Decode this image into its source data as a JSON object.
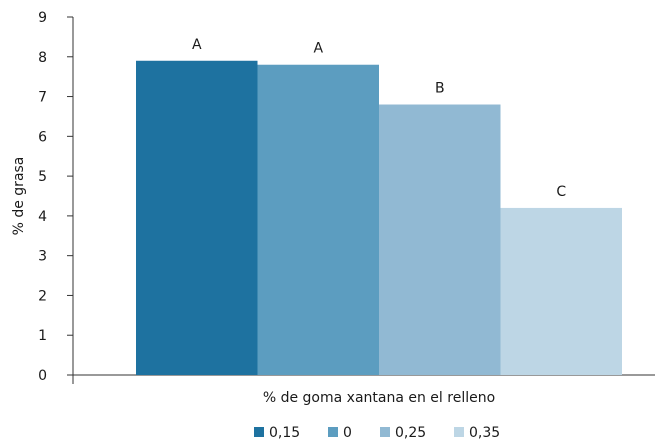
{
  "chart_data": {
    "type": "bar",
    "title": "",
    "xlabel": "% de goma xantana en el relleno",
    "ylabel": "% de grasa",
    "ylim": [
      0,
      9
    ],
    "yticks": [
      "0",
      "1",
      "2",
      "3",
      "4",
      "5",
      "6",
      "7",
      "8",
      "9"
    ],
    "grid": false,
    "legend_position": "bottom",
    "series": [
      {
        "name": "0,15",
        "value": 7.9,
        "label": "A",
        "color": "#1e72a0"
      },
      {
        "name": "0",
        "value": 7.8,
        "label": "A",
        "color": "#5c9dc0"
      },
      {
        "name": "0,25",
        "value": 6.8,
        "label": "B",
        "color": "#91b9d3"
      },
      {
        "name": "0,35",
        "value": 4.2,
        "label": "C",
        "color": "#bdd6e5"
      }
    ]
  }
}
